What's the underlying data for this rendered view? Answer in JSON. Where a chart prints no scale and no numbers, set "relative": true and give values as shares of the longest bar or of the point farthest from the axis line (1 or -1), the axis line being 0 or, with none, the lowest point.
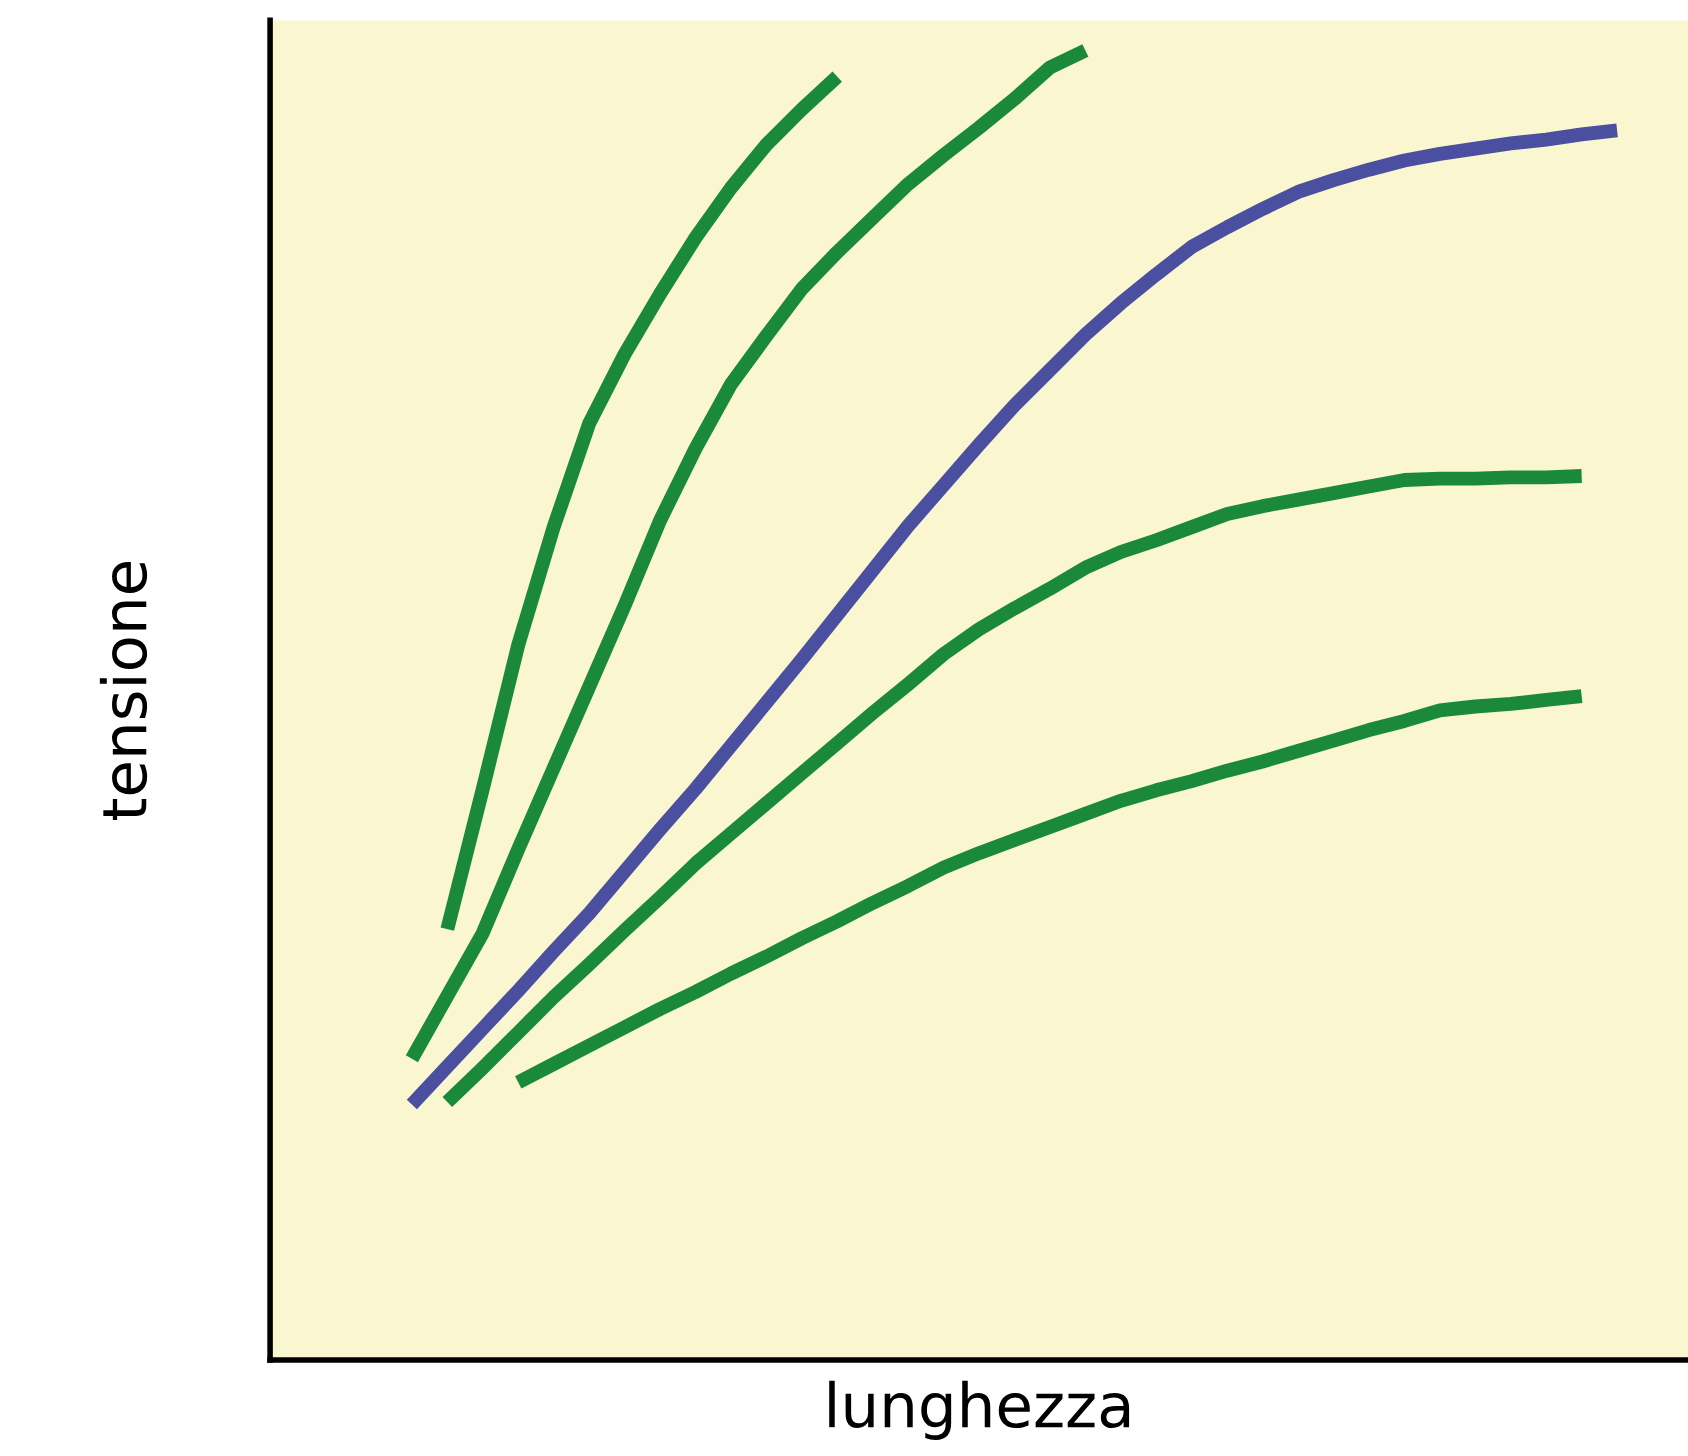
{
  "chart_data": {
    "type": "line",
    "relative": true,
    "xlabel": "lunghezza",
    "ylabel": "tensione",
    "grid": false,
    "legend": false,
    "marker": "none",
    "line_style": "solid",
    "categories": [
      null,
      null,
      null,
      null,
      null,
      null,
      null,
      null,
      null,
      null,
      null,
      null,
      null,
      null,
      null,
      null,
      null,
      null,
      null,
      null,
      null,
      null,
      null,
      null,
      null,
      null,
      null,
      null,
      null,
      null,
      null,
      null,
      null,
      null,
      null
    ],
    "series": [
      {
        "color": "#4a4fa0",
        "values": [
          0.195,
          0.224,
          0.253,
          0.282,
          0.312,
          0.341,
          0.373,
          0.405,
          0.436,
          0.469,
          0.502,
          0.535,
          0.569,
          0.603,
          0.637,
          0.668,
          0.699,
          0.729,
          0.756,
          0.783,
          0.807,
          0.829,
          0.85,
          0.865,
          0.879,
          0.892,
          0.901,
          0.909,
          0.916,
          0.921,
          0.925,
          0.929,
          0.932,
          0.936,
          0.939
        ]
      },
      {
        "color": "#1a8a3a",
        "values": [
          null,
          0.329,
          0.436,
          0.546,
          0.636,
          0.715,
          0.768,
          0.814,
          0.857,
          0.895,
          0.928,
          0.955,
          0.98,
          null,
          null,
          null,
          null,
          null,
          null,
          null,
          null,
          null,
          null,
          null,
          null,
          null,
          null,
          null,
          null,
          null,
          null,
          null,
          null,
          null,
          null
        ]
      },
      {
        "color": "#1a8a3a",
        "values": [
          0.23,
          0.278,
          0.326,
          0.39,
          0.452,
          0.514,
          0.576,
          0.641,
          0.696,
          0.745,
          0.782,
          0.818,
          0.846,
          0.872,
          0.898,
          0.92,
          0.941,
          0.963,
          0.987,
          1,
          null,
          null,
          null,
          null,
          null,
          null,
          null,
          null,
          null,
          null,
          null,
          null,
          null,
          null,
          null
        ]
      },
      {
        "color": "#1a8a3a",
        "values": [
          null,
          0.197,
          0.223,
          0.25,
          0.277,
          0.302,
          0.328,
          0.353,
          0.379,
          0.402,
          0.425,
          0.448,
          0.471,
          0.494,
          0.516,
          0.539,
          0.558,
          0.574,
          0.589,
          0.605,
          0.617,
          0.626,
          0.636,
          0.646,
          0.652,
          0.657,
          0.662,
          0.667,
          0.672,
          0.673,
          0.673,
          0.674,
          0.674,
          0.675,
          null
        ]
      },
      {
        "color": "#1a8a3a",
        "values": [
          null,
          null,
          null,
          0.212,
          0.226,
          0.24,
          0.254,
          0.268,
          0.281,
          0.295,
          0.308,
          0.322,
          0.335,
          0.349,
          0.362,
          0.376,
          0.387,
          0.397,
          0.407,
          0.417,
          0.427,
          0.435,
          0.442,
          0.45,
          0.457,
          0.465,
          0.473,
          0.481,
          0.488,
          0.496,
          0.499,
          0.501,
          0.504,
          0.507,
          null
        ]
      }
    ]
  }
}
